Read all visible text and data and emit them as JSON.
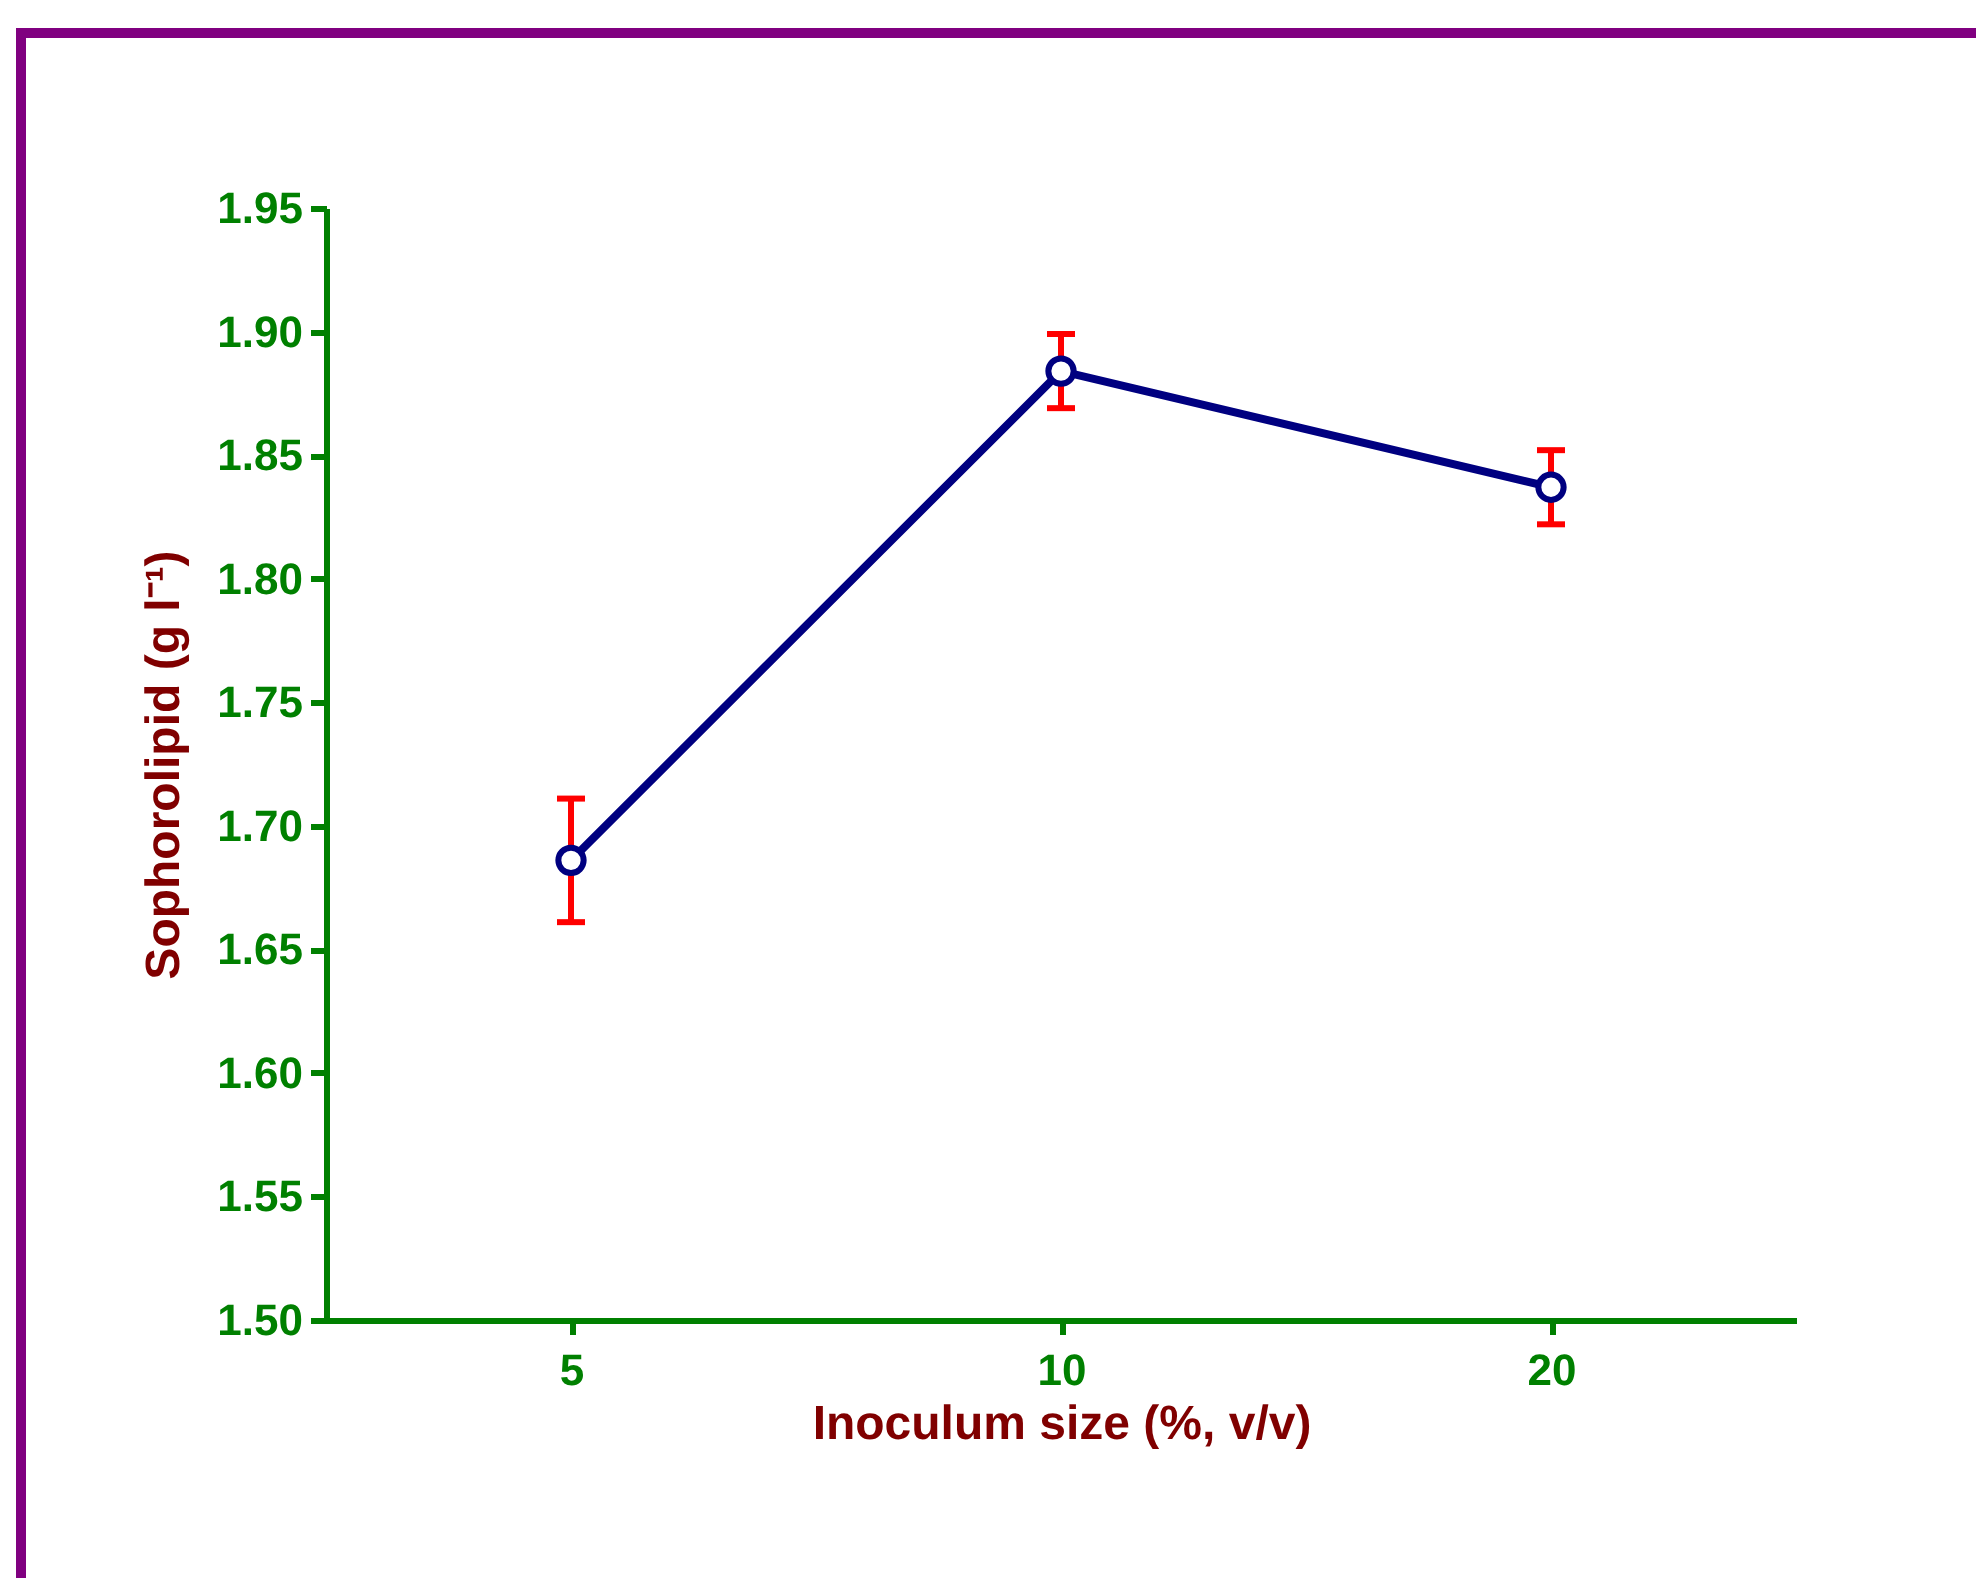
{
  "chart_data": {
    "type": "line",
    "xlabel": "Inoculum size (%, v/v)",
    "ylabel": "Sophorolipid (g l⁻¹)",
    "categories": [
      "5",
      "10",
      "20"
    ],
    "series": [
      {
        "color": "#000080",
        "values": [
          1.686,
          1.884,
          1.837
        ],
        "errors": [
          0.025,
          0.015,
          0.015
        ]
      }
    ],
    "ylim": [
      1.5,
      1.95
    ],
    "yticks": [
      {
        "value": 1.5,
        "label": "1.50"
      },
      {
        "value": 1.55,
        "label": "1.55"
      },
      {
        "value": 1.6,
        "label": "1.60"
      },
      {
        "value": 1.65,
        "label": "1.65"
      },
      {
        "value": 1.7,
        "label": "1.70"
      },
      {
        "value": 1.75,
        "label": "1.75"
      },
      {
        "value": 1.8,
        "label": "1.80"
      },
      {
        "value": 1.85,
        "label": "1.85"
      },
      {
        "value": 1.9,
        "label": "1.90"
      },
      {
        "value": 1.95,
        "label": "1.95"
      }
    ],
    "grid": false,
    "marker": "circle",
    "line_style": "solid"
  }
}
